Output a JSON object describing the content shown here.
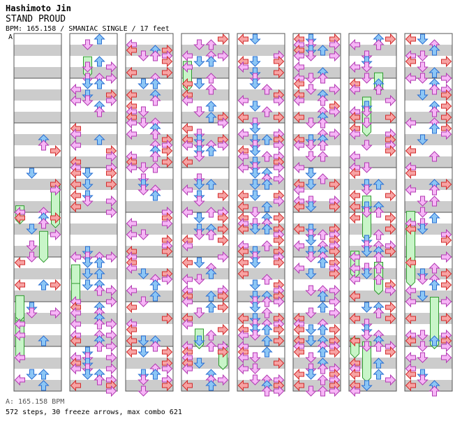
{
  "header": {
    "artist": "Hashimoto Jin",
    "title": "STAND PROUD",
    "info": "BPM: 165.158 / SMANIAC SINGLE / 17 feet"
  },
  "column_marker": "A",
  "footer": {
    "bpm_label": "A: 165.158 BPM",
    "stats": "572 steps, 30 freeze arrows, max combo 621"
  },
  "colors": {
    "left_right_fill": "#f7a3a3",
    "left_right_stroke": "#d22a2a",
    "up_down_fill": "#8cc6f5",
    "up_down_stroke": "#2a6fd2",
    "alt_fill": "#f6b6f6",
    "alt_stroke": "#b23ab2",
    "freeze_fill": "#c8f5c8",
    "freeze_stroke": "#2e9a2e",
    "stripe": "#cccccc",
    "border": "#555555"
  },
  "chart_data": {
    "type": "step-chart",
    "title": "STAND PROUD",
    "mode": "SMANIAC SINGLE",
    "difficulty": "17 feet",
    "bpm": 165.158,
    "steps": 572,
    "freeze_arrows": 30,
    "max_combo": 621,
    "lanes": [
      "left",
      "down",
      "up",
      "right"
    ],
    "columns": 8,
    "measures_per_column": 8,
    "total_measures": 64,
    "first_note_measure": 3
  }
}
